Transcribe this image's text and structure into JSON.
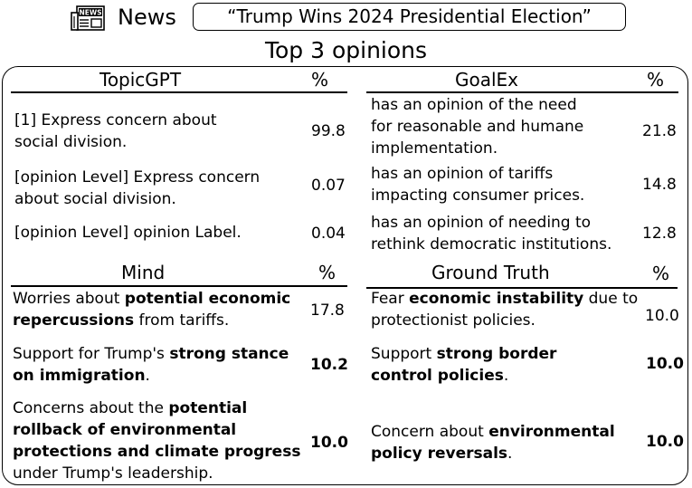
{
  "header": {
    "icon": "newspaper-icon",
    "icon_text": "NEWS",
    "news_label": "News",
    "headline": "“Trump Wins 2024 Presidential Election”"
  },
  "section_title": "Top 3 opinions",
  "tables": {
    "topicgpt": {
      "title": "TopicGPT",
      "pct_header": "%",
      "rows": [
        {
          "lines": [
            "[1] Express concern about",
            "social division."
          ],
          "pct": "99.8"
        },
        {
          "lines": [
            "[opinion Level] Express concern",
            "about social division."
          ],
          "pct": "0.07"
        },
        {
          "lines": [
            "[opinion Level] opinion Label."
          ],
          "pct": "0.04"
        }
      ]
    },
    "goalex": {
      "title": "GoalEx",
      "pct_header": "%",
      "rows": [
        {
          "lines": [
            "has an opinion of the need",
            "for reasonable and humane",
            "implementation."
          ],
          "pct": "21.8"
        },
        {
          "lines": [
            "has an opinion of tariffs",
            "impacting consumer prices."
          ],
          "pct": "14.8"
        },
        {
          "lines": [
            "has an opinion of needing to",
            "rethink democratic institutions."
          ],
          "pct": "12.8"
        }
      ]
    },
    "mind": {
      "title": "Mind",
      "pct_header": "%",
      "rows": [
        {
          "l1a": "Worries about ",
          "l1b": "potential economic",
          "l2a": "repercussions",
          "l2b": " from tariffs.",
          "pct": "17.8"
        },
        {
          "l1a": "Support for Trump's ",
          "l1b": "strong stance",
          "l2a": "on immigration",
          "l2b": ".",
          "pct": "10.2"
        },
        {
          "l1a": "Concerns about the ",
          "l1b": "potential",
          "l2": "rollback of environmental",
          "l3": "protections and climate progress",
          "l4": "under Trump's leadership.",
          "pct": "10.0"
        }
      ]
    },
    "ground_truth": {
      "title": "Ground Truth",
      "pct_header": "%",
      "rows": [
        {
          "l1a": "Fear ",
          "l1b": "economic instability",
          "l1c": " due to",
          "l2": "protectionist policies.",
          "pct": "10.0"
        },
        {
          "l1a": "Support ",
          "l1b": "strong border",
          "l2a": "control policies",
          "l2b": ".",
          "pct": "10.0"
        },
        {
          "l1a": "Concern about ",
          "l1b": "environmental",
          "l2a": "policy reversals",
          "l2b": ".",
          "pct": "10.0"
        }
      ]
    }
  }
}
